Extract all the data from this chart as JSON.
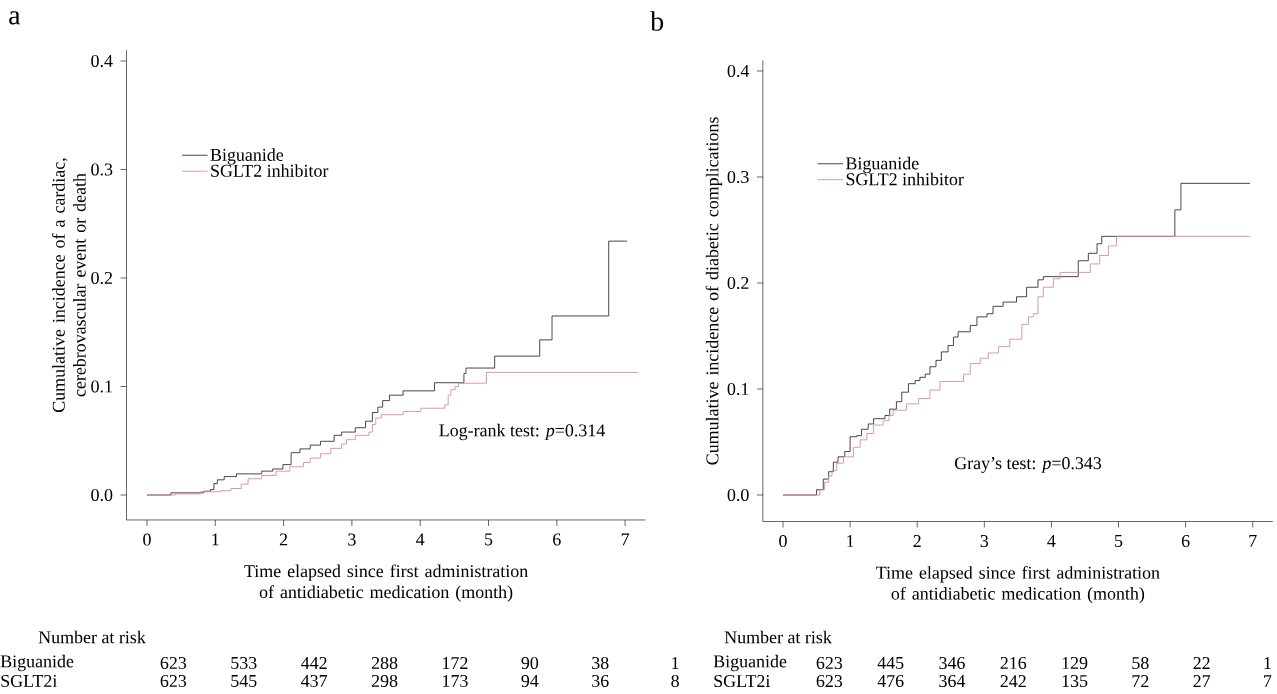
{
  "chart_data": [
    {
      "type": "step",
      "title": "a",
      "ylabel": "Cumulative incidence of a cardiac, cerebrovascular event or death",
      "xlabel": "Time elapsed since first administration of antidiabetic medication (month)",
      "xlim": [
        -0.3,
        7.3
      ],
      "ylim": [
        -0.023,
        0.41
      ],
      "xticks": [
        0,
        1,
        2,
        3,
        4,
        5,
        6,
        7
      ],
      "yticks": [
        {
          "value": 0,
          "label": "0.0"
        },
        {
          "value": 0.1,
          "label": "0.1"
        },
        {
          "value": 0.2,
          "label": "0.2"
        },
        {
          "value": 0.3,
          "label": "0.3"
        },
        {
          "value": 0.4,
          "label": "0.4"
        }
      ],
      "legend": "top left",
      "series": [
        {
          "name": "Biguanide",
          "color": "#333333",
          "x": [
            0,
            0.35,
            0.83,
            0.93,
            0.98,
            1.03,
            1.13,
            1.31,
            1.68,
            1.84,
            1.99,
            2.11,
            2.24,
            2.39,
            2.54,
            2.74,
            2.85,
            3.05,
            3.2,
            3.3,
            3.38,
            3.45,
            3.55,
            3.75,
            4.21,
            4.64,
            4.67,
            5.09,
            5.75,
            5.93,
            6.76,
            7.03
          ],
          "values": [
            0,
            0.002,
            0.0035,
            0.005,
            0.0105,
            0.014,
            0.017,
            0.0195,
            0.022,
            0.024,
            0.028,
            0.039,
            0.0425,
            0.046,
            0.0495,
            0.055,
            0.058,
            0.062,
            0.068,
            0.076,
            0.081,
            0.087,
            0.092,
            0.096,
            0.1035,
            0.112,
            0.117,
            0.128,
            0.143,
            0.165,
            0.234,
            0.234
          ]
        },
        {
          "name": "SGLT2 inhibitor",
          "color": "#d98ca0",
          "x": [
            0,
            0.42,
            0.78,
            1.08,
            1.23,
            1.38,
            1.48,
            1.68,
            1.89,
            2.09,
            2.29,
            2.39,
            2.54,
            2.69,
            2.85,
            2.92,
            3.05,
            3.25,
            3.3,
            3.35,
            3.43,
            3.75,
            4.01,
            4.36,
            4.41,
            4.45,
            4.51,
            4.56,
            4.97,
            7.19
          ],
          "values": [
            0,
            0.001,
            0.003,
            0.004,
            0.006,
            0.01,
            0.015,
            0.018,
            0.022,
            0.026,
            0.03,
            0.034,
            0.038,
            0.043,
            0.047,
            0.051,
            0.055,
            0.058,
            0.065,
            0.071,
            0.074,
            0.077,
            0.08,
            0.083,
            0.092,
            0.097,
            0.1,
            0.103,
            0.113,
            0.113
          ]
        }
      ],
      "annotations": [
        "Log-rank test: *p*=0.314",
        "Number at risk",
        "Biguanide",
        "623",
        "533",
        "442",
        "288",
        "172",
        "90",
        "38",
        "1",
        "SGLT2i",
        "623",
        "545",
        "437",
        "298",
        "173",
        "94",
        "36",
        "8"
      ]
    },
    {
      "type": "step",
      "title": "b",
      "ylabel": "Cumulative incidence of diabetic complications",
      "xlabel": "Time elapsed since first administration of antidiabetic medication (month)",
      "xlim": [
        -0.3,
        7.3
      ],
      "ylim": [
        -0.025,
        0.41
      ],
      "xticks": [
        0,
        1,
        2,
        3,
        4,
        5,
        6,
        7
      ],
      "yticks": [
        {
          "value": 0,
          "label": "0.0"
        },
        {
          "value": 0.1,
          "label": "0.1"
        },
        {
          "value": 0.2,
          "label": "0.2"
        },
        {
          "value": 0.3,
          "label": "0.3"
        },
        {
          "value": 0.4,
          "label": "0.4"
        }
      ],
      "legend": "top left",
      "series": [
        {
          "name": "Biguanide",
          "color": "#333333",
          "x": [
            0,
            0.5,
            0.6,
            0.68,
            0.75,
            0.82,
            0.92,
            1.0,
            1.1,
            1.17,
            1.27,
            1.35,
            1.52,
            1.59,
            1.69,
            1.77,
            1.87,
            1.97,
            2.04,
            2.12,
            2.19,
            2.28,
            2.36,
            2.46,
            2.54,
            2.61,
            2.79,
            2.89,
            3.04,
            3.13,
            3.28,
            3.48,
            3.63,
            3.8,
            3.88,
            4.4,
            4.55,
            4.68,
            4.75,
            5.84,
            5.93,
            6.96
          ],
          "values": [
            0,
            0.005,
            0.015,
            0.022,
            0.031,
            0.036,
            0.041,
            0.055,
            0.056,
            0.062,
            0.067,
            0.072,
            0.075,
            0.081,
            0.088,
            0.097,
            0.105,
            0.108,
            0.111,
            0.114,
            0.121,
            0.127,
            0.135,
            0.141,
            0.149,
            0.154,
            0.16,
            0.168,
            0.171,
            0.178,
            0.182,
            0.187,
            0.196,
            0.203,
            0.206,
            0.221,
            0.228,
            0.237,
            0.244,
            0.269,
            0.294,
            0.294
          ]
        },
        {
          "name": "SGLT2 inhibitor",
          "color": "#d98ca0",
          "x": [
            0,
            0.55,
            0.62,
            0.68,
            0.73,
            0.8,
            0.9,
            1.05,
            1.15,
            1.25,
            1.35,
            1.49,
            1.58,
            1.64,
            1.84,
            2.02,
            2.19,
            2.34,
            2.69,
            2.79,
            2.94,
            3.06,
            3.21,
            3.38,
            3.56,
            3.66,
            3.73,
            3.8,
            3.88,
            4.03,
            4.13,
            4.58,
            4.72,
            4.85,
            4.97,
            6.96
          ],
          "values": [
            0,
            0.005,
            0.012,
            0.018,
            0.023,
            0.03,
            0.036,
            0.045,
            0.052,
            0.058,
            0.066,
            0.07,
            0.075,
            0.08,
            0.086,
            0.091,
            0.099,
            0.107,
            0.114,
            0.124,
            0.129,
            0.134,
            0.14,
            0.147,
            0.161,
            0.168,
            0.171,
            0.187,
            0.196,
            0.204,
            0.21,
            0.218,
            0.226,
            0.235,
            0.244,
            0.244
          ]
        }
      ],
      "annotations": [
        "Gray’s test: *p*=0.343",
        "Number at risk",
        "Biguanide",
        "623",
        "445",
        "346",
        "216",
        "129",
        "58",
        "22",
        "1",
        "SGLT2i",
        "623",
        "476",
        "364",
        "242",
        "135",
        "72",
        "27",
        "7"
      ]
    }
  ]
}
